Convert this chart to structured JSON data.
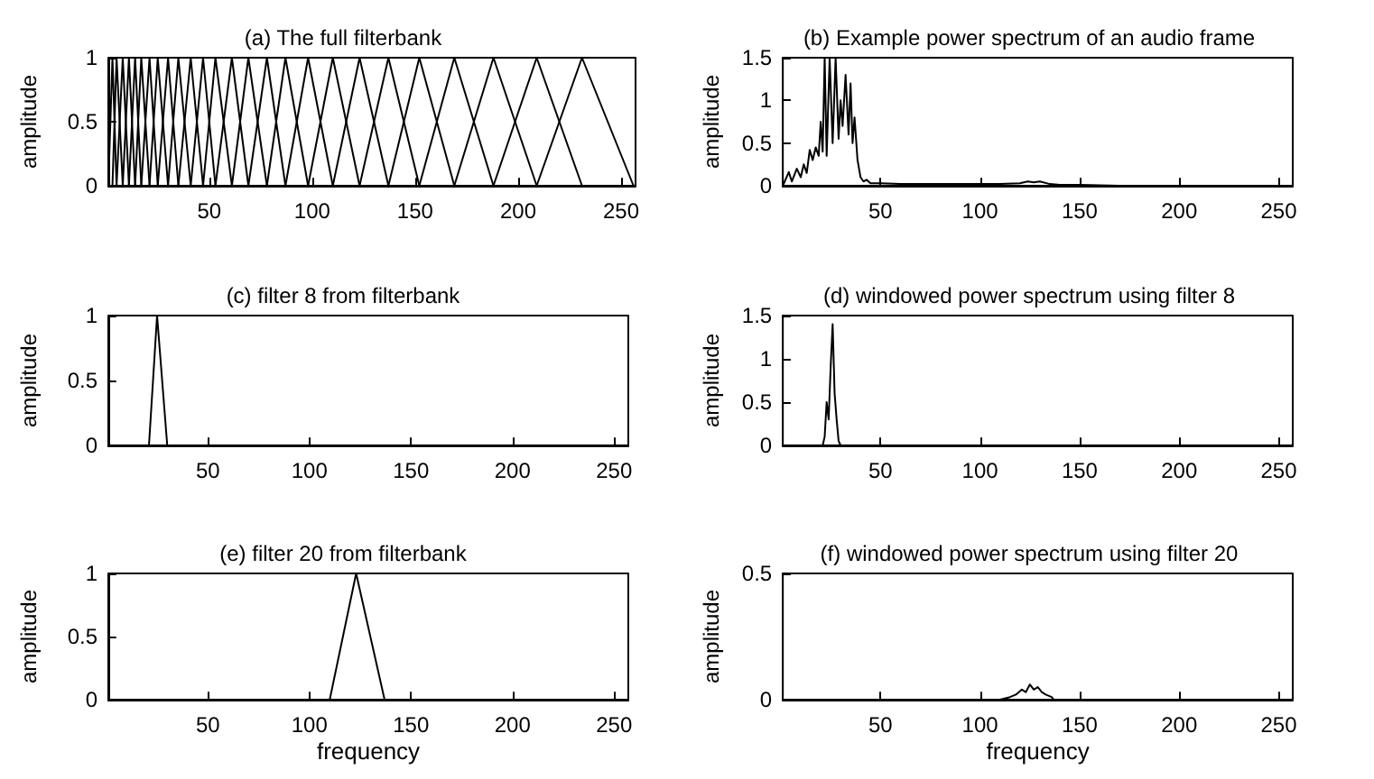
{
  "chart_data": [
    {
      "type": "line",
      "title": "(a) The full filterbank",
      "ylabel": "amplitude",
      "xlim": [
        1,
        257
      ],
      "xticks": [
        50,
        100,
        150,
        200,
        250
      ],
      "ylim": [
        0,
        1
      ],
      "yticks": [
        0,
        0.5,
        1
      ],
      "series": [
        {
          "color": "#000000",
          "x": [
            1,
            3,
            5
          ],
          "values": [
            0,
            1,
            0
          ]
        },
        {
          "color": "#000000",
          "x": [
            3,
            5,
            8
          ],
          "values": [
            0,
            1,
            0
          ]
        },
        {
          "color": "#000000",
          "x": [
            5,
            8,
            11
          ],
          "values": [
            0,
            1,
            0
          ]
        },
        {
          "color": "#000000",
          "x": [
            8,
            11,
            14
          ],
          "values": [
            0,
            1,
            0
          ]
        },
        {
          "color": "#000000",
          "x": [
            11,
            14,
            17
          ],
          "values": [
            0,
            1,
            0
          ]
        },
        {
          "color": "#000000",
          "x": [
            14,
            17,
            21
          ],
          "values": [
            0,
            1,
            0
          ]
        },
        {
          "color": "#000000",
          "x": [
            17,
            21,
            25
          ],
          "values": [
            0,
            1,
            0
          ]
        },
        {
          "color": "#000000",
          "x": [
            21,
            25,
            30
          ],
          "values": [
            0,
            1,
            0
          ]
        },
        {
          "color": "#000000",
          "x": [
            25,
            30,
            35
          ],
          "values": [
            0,
            1,
            0
          ]
        },
        {
          "color": "#000000",
          "x": [
            30,
            35,
            41
          ],
          "values": [
            0,
            1,
            0
          ]
        },
        {
          "color": "#000000",
          "x": [
            35,
            41,
            47
          ],
          "values": [
            0,
            1,
            0
          ]
        },
        {
          "color": "#000000",
          "x": [
            41,
            47,
            53
          ],
          "values": [
            0,
            1,
            0
          ]
        },
        {
          "color": "#000000",
          "x": [
            47,
            53,
            61
          ],
          "values": [
            0,
            1,
            0
          ]
        },
        {
          "color": "#000000",
          "x": [
            53,
            61,
            69
          ],
          "values": [
            0,
            1,
            0
          ]
        },
        {
          "color": "#000000",
          "x": [
            61,
            69,
            78
          ],
          "values": [
            0,
            1,
            0
          ]
        },
        {
          "color": "#000000",
          "x": [
            69,
            78,
            87
          ],
          "values": [
            0,
            1,
            0
          ]
        },
        {
          "color": "#000000",
          "x": [
            78,
            87,
            98
          ],
          "values": [
            0,
            1,
            0
          ]
        },
        {
          "color": "#000000",
          "x": [
            87,
            98,
            110
          ],
          "values": [
            0,
            1,
            0
          ]
        },
        {
          "color": "#000000",
          "x": [
            98,
            110,
            123
          ],
          "values": [
            0,
            1,
            0
          ]
        },
        {
          "color": "#000000",
          "x": [
            110,
            123,
            137
          ],
          "values": [
            0,
            1,
            0
          ]
        },
        {
          "color": "#000000",
          "x": [
            123,
            137,
            152
          ],
          "values": [
            0,
            1,
            0
          ]
        },
        {
          "color": "#000000",
          "x": [
            137,
            152,
            169
          ],
          "values": [
            0,
            1,
            0
          ]
        },
        {
          "color": "#000000",
          "x": [
            152,
            169,
            188
          ],
          "values": [
            0,
            1,
            0
          ]
        },
        {
          "color": "#000000",
          "x": [
            169,
            188,
            209
          ],
          "values": [
            0,
            1,
            0
          ]
        },
        {
          "color": "#000000",
          "x": [
            188,
            209,
            231
          ],
          "values": [
            0,
            1,
            0
          ]
        },
        {
          "color": "#000000",
          "x": [
            209,
            231,
            256
          ],
          "values": [
            0,
            1,
            0
          ]
        }
      ]
    },
    {
      "type": "line",
      "title": "(b) Example power spectrum of an audio frame",
      "ylabel": "amplitude",
      "xlim": [
        1,
        257
      ],
      "xticks": [
        50,
        100,
        150,
        200,
        250
      ],
      "ylim": [
        0,
        1.5
      ],
      "yticks": [
        0,
        0.5,
        1,
        1.5
      ],
      "series": [
        {
          "color": "#000000",
          "x": [
            1,
            4,
            5.5,
            8,
            10,
            11.5,
            13,
            14.5,
            16,
            17.5,
            19,
            20,
            21,
            22,
            23,
            24.5,
            26,
            27.5,
            29,
            30,
            31,
            32.5,
            34,
            35,
            36,
            37,
            38.5,
            40,
            41.5,
            43,
            45,
            50,
            60,
            70,
            80,
            90,
            100,
            110,
            120,
            124,
            127,
            130,
            135,
            140,
            150,
            170,
            200,
            230,
            257
          ],
          "values": [
            0,
            0.16,
            0.05,
            0.2,
            0.1,
            0.25,
            0.15,
            0.42,
            0.3,
            0.45,
            0.35,
            0.75,
            0.4,
            1.5,
            0.35,
            1.5,
            0.5,
            1.5,
            0.55,
            1,
            0.7,
            1.3,
            0.6,
            1.2,
            0.5,
            0.8,
            0.3,
            0.1,
            0.05,
            0.07,
            0.03,
            0.03,
            0.02,
            0.02,
            0.02,
            0.02,
            0.02,
            0.02,
            0.03,
            0.05,
            0.04,
            0.05,
            0.02,
            0.01,
            0.01,
            0,
            0,
            0,
            0
          ]
        }
      ]
    },
    {
      "type": "line",
      "title": "(c) filter 8 from filterbank",
      "ylabel": "amplitude",
      "xlim": [
        1,
        257
      ],
      "xticks": [
        50,
        100,
        150,
        200,
        250
      ],
      "ylim": [
        0,
        1
      ],
      "yticks": [
        0,
        0.5,
        1
      ],
      "series": [
        {
          "color": "#000000",
          "x": [
            1,
            21,
            25,
            30,
            257
          ],
          "values": [
            0,
            0,
            1,
            0,
            0
          ]
        }
      ]
    },
    {
      "type": "line",
      "title": "(d) windowed power spectrum using filter 8",
      "ylabel": "amplitude",
      "xlim": [
        1,
        257
      ],
      "xticks": [
        50,
        100,
        150,
        200,
        250
      ],
      "ylim": [
        0,
        1.5
      ],
      "yticks": [
        0,
        0.5,
        1,
        1.5
      ],
      "series": [
        {
          "color": "#000000",
          "x": [
            1,
            21,
            22,
            23,
            24,
            25,
            26,
            27,
            28,
            29,
            30,
            257
          ],
          "values": [
            0,
            0,
            0.1,
            0.5,
            0.3,
            0.9,
            1.4,
            0.6,
            0.3,
            0.05,
            0,
            0
          ]
        }
      ]
    },
    {
      "type": "line",
      "title": "(e) filter 20 from filterbank",
      "ylabel": "amplitude",
      "xlabel": "frequency",
      "xlim": [
        1,
        257
      ],
      "xticks": [
        50,
        100,
        150,
        200,
        250
      ],
      "ylim": [
        0,
        1
      ],
      "yticks": [
        0,
        0.5,
        1
      ],
      "series": [
        {
          "color": "#000000",
          "x": [
            1,
            110,
            123,
            137,
            257
          ],
          "values": [
            0,
            0,
            1,
            0,
            0
          ]
        }
      ]
    },
    {
      "type": "line",
      "title": "(f) windowed power spectrum using filter 20",
      "ylabel": "amplitude",
      "xlabel": "frequency",
      "xlim": [
        1,
        257
      ],
      "xticks": [
        50,
        100,
        150,
        200,
        250
      ],
      "ylim": [
        0,
        0.5
      ],
      "yticks": [
        0,
        0.5
      ],
      "series": [
        {
          "color": "#000000",
          "x": [
            1,
            110,
            115,
            118,
            121,
            123,
            125,
            127,
            129,
            131,
            133,
            136,
            137,
            257
          ],
          "values": [
            0,
            0,
            0.01,
            0.02,
            0.04,
            0.03,
            0.06,
            0.04,
            0.05,
            0.03,
            0.02,
            0.01,
            0,
            0
          ]
        }
      ]
    }
  ]
}
